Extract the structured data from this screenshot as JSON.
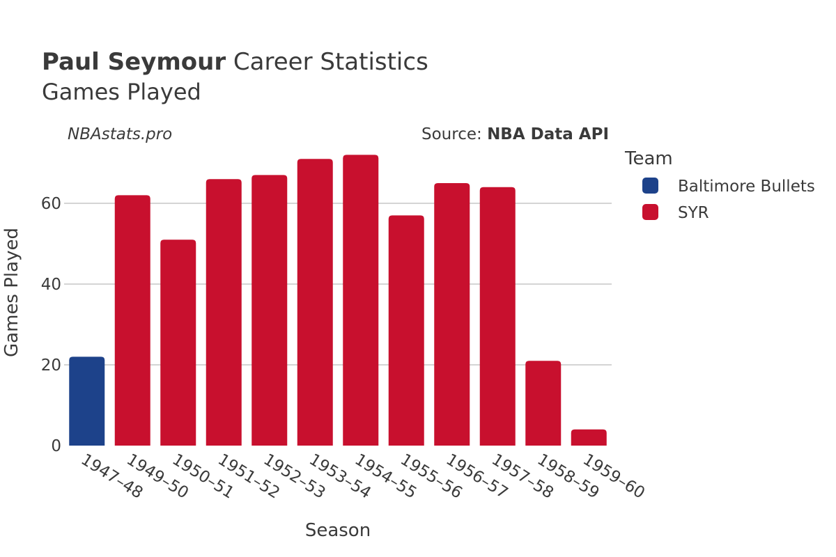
{
  "title": {
    "bold": "Paul Seymour",
    "rest": " Career Statistics",
    "subtitle": "Games Played"
  },
  "watermark": "NBAstats.pro",
  "source": {
    "prefix": "Source: ",
    "name": "NBA Data API"
  },
  "legend": {
    "title": "Team",
    "items": [
      {
        "label": "Baltimore Bullets",
        "color": "#1d428a"
      },
      {
        "label": "SYR",
        "color": "#c8102e"
      }
    ]
  },
  "chart_data": {
    "type": "bar",
    "title": "Paul Seymour Career Statistics — Games Played",
    "xlabel": "Season",
    "ylabel": "Games Played",
    "ylim": [
      0,
      75
    ],
    "yticks": [
      0,
      20,
      40,
      60
    ],
    "grid": true,
    "legend_position": "right",
    "categories": [
      "1947-48",
      "1949-50",
      "1950-51",
      "1951-52",
      "1952-53",
      "1953-54",
      "1954-55",
      "1955-56",
      "1956-57",
      "1957-58",
      "1958-59",
      "1959-60"
    ],
    "tick_labels": [
      "1947–48",
      "1949–50",
      "1950–51",
      "1951–52",
      "1952–53",
      "1953–54",
      "1954–55",
      "1955–56",
      "1956–57",
      "1957–58",
      "1958–59",
      "1959–60"
    ],
    "values": [
      22,
      62,
      51,
      66,
      67,
      71,
      72,
      57,
      65,
      64,
      21,
      4
    ],
    "teams": [
      "Baltimore Bullets",
      "SYR",
      "SYR",
      "SYR",
      "SYR",
      "SYR",
      "SYR",
      "SYR",
      "SYR",
      "SYR",
      "SYR",
      "SYR"
    ]
  }
}
